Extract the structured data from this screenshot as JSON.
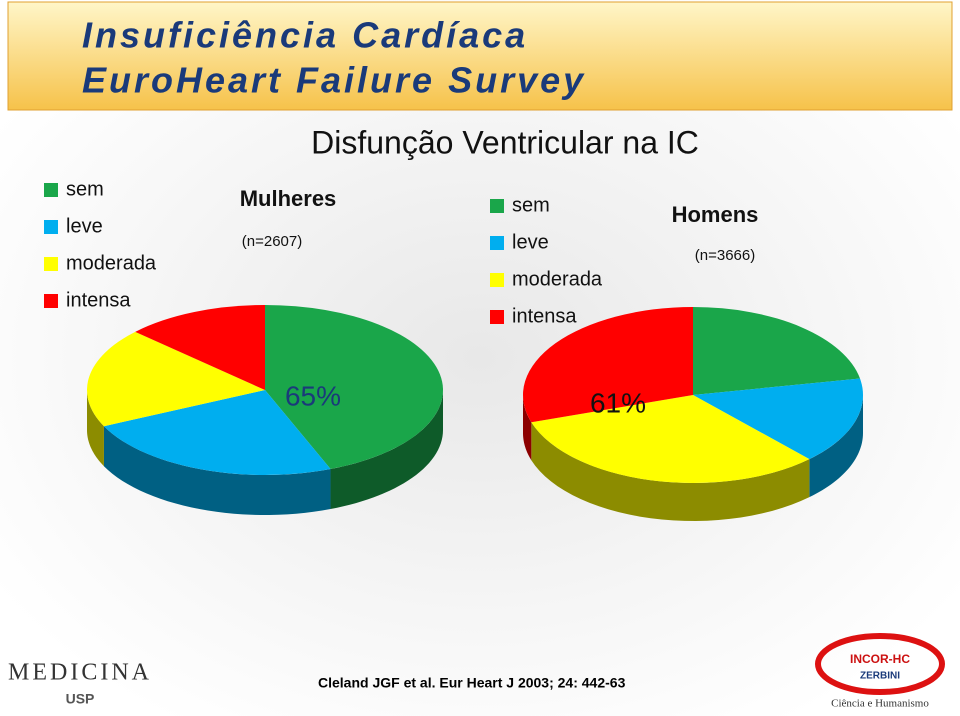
{
  "header": {
    "title_line1": "Insuficiência Cardíaca",
    "title_line2": "EuroHeart Failure Survey"
  },
  "slide_title": "Disfunção Ventricular na IC",
  "chart_data": [
    {
      "type": "pie",
      "title": "Mulheres",
      "subtitle": "(n=2607)",
      "annotation": "65%",
      "categories": [
        "sem",
        "leve",
        "moderada",
        "intensa"
      ],
      "values": [
        44,
        24,
        19,
        13
      ],
      "colors": [
        "#1aa64a",
        "#00aeef",
        "#ffff00",
        "#ff0000"
      ]
    },
    {
      "type": "pie",
      "title": "Homens",
      "subtitle": "(n=3666)",
      "annotation": "61%",
      "categories": [
        "sem",
        "leve",
        "moderada",
        "intensa"
      ],
      "values": [
        22,
        16,
        32,
        30
      ],
      "colors": [
        "#1aa64a",
        "#00aeef",
        "#ffff00",
        "#ff0000"
      ]
    }
  ],
  "footer": {
    "citation": "Cleland JGF et al. Eur Heart J 2003; 24: 442-63",
    "logo_left": "MEDICINA",
    "logo_left_sub": "USP",
    "logo_right": "INCOR-HC",
    "logo_right_sub": "ZERBINI",
    "logo_right_motto": "Ciência e Humanismo"
  }
}
